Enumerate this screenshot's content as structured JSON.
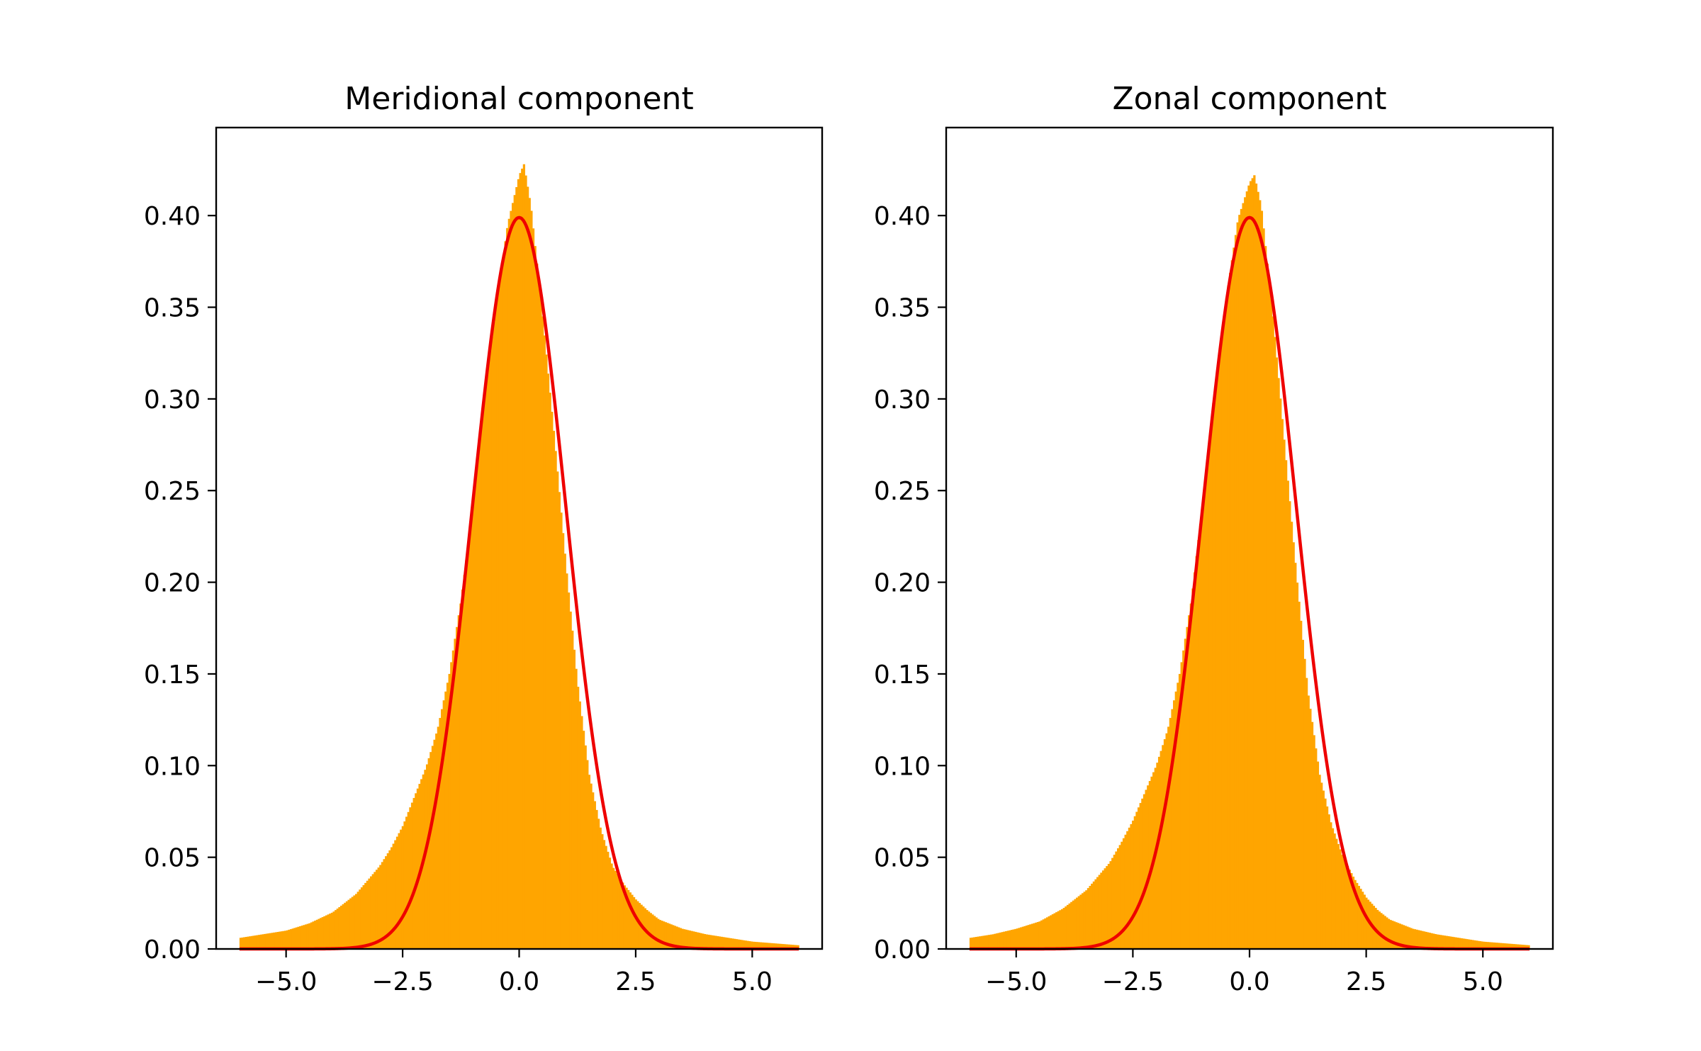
{
  "figure": {
    "background": "#ffffff"
  },
  "chart_data": [
    {
      "type": "bar",
      "title": "Meridional component",
      "xlabel": "",
      "ylabel": "",
      "xlim": [
        -6.5,
        6.5
      ],
      "ylim": [
        0,
        0.448
      ],
      "grid": false,
      "legend": "none",
      "xticks": [
        -5.0,
        -2.5,
        0.0,
        2.5,
        5.0
      ],
      "xtick_labels": [
        "−5.0",
        "−2.5",
        "0.0",
        "2.5",
        "5.0"
      ],
      "yticks": [
        0.0,
        0.05,
        0.1,
        0.15,
        0.2,
        0.25,
        0.3,
        0.35,
        0.4
      ],
      "ytick_labels": [
        "0.00",
        "0.05",
        "0.10",
        "0.15",
        "0.20",
        "0.25",
        "0.30",
        "0.35",
        "0.40"
      ],
      "series": [
        {
          "kind": "histogram",
          "color": "#ffa500",
          "range": [
            -6.0,
            6.0
          ],
          "x": [
            -6.0,
            -5.5,
            -5.0,
            -4.5,
            -4.0,
            -3.5,
            -3.0,
            -2.75,
            -2.5,
            -2.25,
            -2.0,
            -1.75,
            -1.5,
            -1.25,
            -1.0,
            -0.75,
            -0.5,
            -0.25,
            0.0,
            0.1,
            0.25,
            0.5,
            0.75,
            1.0,
            1.25,
            1.5,
            1.75,
            2.0,
            2.25,
            2.5,
            2.75,
            3.0,
            3.5,
            4.0,
            4.5,
            5.0,
            5.5,
            6.0
          ],
          "values": [
            0.006,
            0.008,
            0.01,
            0.014,
            0.02,
            0.03,
            0.045,
            0.055,
            0.067,
            0.083,
            0.099,
            0.12,
            0.15,
            0.19,
            0.24,
            0.3,
            0.35,
            0.395,
            0.422,
            0.428,
            0.405,
            0.345,
            0.28,
            0.21,
            0.145,
            0.095,
            0.065,
            0.045,
            0.035,
            0.027,
            0.021,
            0.016,
            0.011,
            0.008,
            0.006,
            0.004,
            0.003,
            0.002
          ]
        },
        {
          "kind": "line",
          "color": "#ee0000",
          "distribution": "normal",
          "mean": 0.0,
          "std": 1.0,
          "x_range": [
            -6.0,
            6.0
          ]
        }
      ]
    },
    {
      "type": "bar",
      "title": "Zonal component",
      "xlabel": "",
      "ylabel": "",
      "xlim": [
        -6.5,
        6.5
      ],
      "ylim": [
        0,
        0.448
      ],
      "grid": false,
      "legend": "none",
      "xticks": [
        -5.0,
        -2.5,
        0.0,
        2.5,
        5.0
      ],
      "xtick_labels": [
        "−5.0",
        "−2.5",
        "0.0",
        "2.5",
        "5.0"
      ],
      "yticks": [
        0.0,
        0.05,
        0.1,
        0.15,
        0.2,
        0.25,
        0.3,
        0.35,
        0.4
      ],
      "ytick_labels": [
        "0.00",
        "0.05",
        "0.10",
        "0.15",
        "0.20",
        "0.25",
        "0.30",
        "0.35",
        "0.40"
      ],
      "series": [
        {
          "kind": "histogram",
          "color": "#ffa500",
          "range": [
            -6.0,
            6.0
          ],
          "x": [
            -6.0,
            -5.5,
            -5.0,
            -4.5,
            -4.0,
            -3.5,
            -3.0,
            -2.75,
            -2.5,
            -2.25,
            -2.0,
            -1.75,
            -1.5,
            -1.25,
            -1.0,
            -0.75,
            -0.5,
            -0.25,
            0.0,
            0.1,
            0.25,
            0.5,
            0.75,
            1.0,
            1.25,
            1.5,
            1.75,
            2.0,
            2.25,
            2.5,
            2.75,
            3.0,
            3.5,
            4.0,
            4.5,
            5.0,
            5.5,
            6.0
          ],
          "values": [
            0.006,
            0.008,
            0.011,
            0.015,
            0.022,
            0.032,
            0.047,
            0.058,
            0.07,
            0.085,
            0.1,
            0.12,
            0.15,
            0.19,
            0.245,
            0.305,
            0.355,
            0.398,
            0.418,
            0.422,
            0.405,
            0.345,
            0.275,
            0.205,
            0.14,
            0.095,
            0.068,
            0.05,
            0.038,
            0.028,
            0.021,
            0.016,
            0.011,
            0.008,
            0.006,
            0.004,
            0.003,
            0.002
          ]
        },
        {
          "kind": "line",
          "color": "#ee0000",
          "distribution": "normal",
          "mean": 0.0,
          "std": 1.0,
          "x_range": [
            -6.0,
            6.0
          ]
        }
      ]
    }
  ]
}
